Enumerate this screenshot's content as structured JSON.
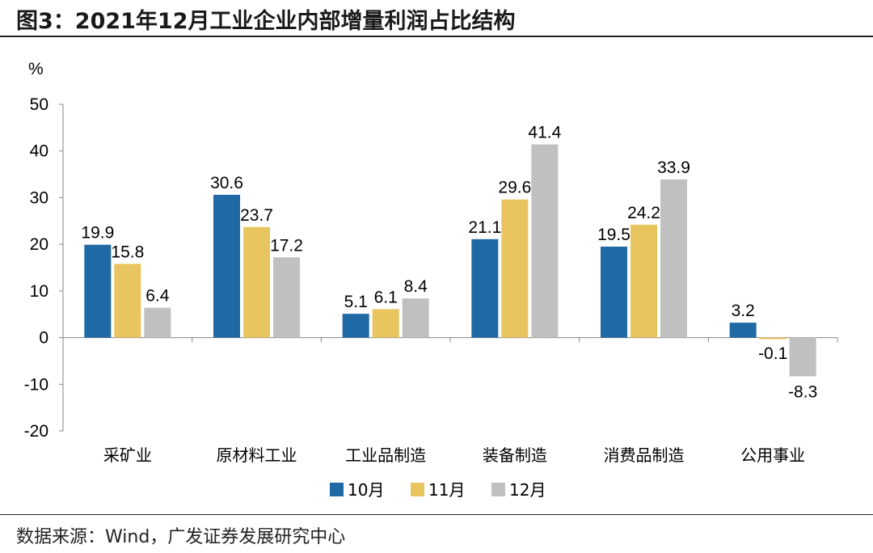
{
  "title": "图3：2021年12月工业企业内部增量利润占比结构",
  "source": "数据来源：Wind，广发证券发展研究中心",
  "chart_data": {
    "type": "bar",
    "title": "2021年12月工业企业内部增量利润占比结构",
    "ylabel": "%",
    "xlabel": "",
    "ylim": [
      -20,
      50
    ],
    "yticks": [
      -20,
      -10,
      0,
      10,
      20,
      30,
      40,
      50
    ],
    "categories": [
      "采矿业",
      "原材料工业",
      "工业品制造",
      "装备制造",
      "消费品制造",
      "公用事业"
    ],
    "series": [
      {
        "name": "10月",
        "color": "#1f6aa5",
        "values": [
          19.9,
          30.6,
          5.1,
          21.1,
          19.5,
          3.2
        ]
      },
      {
        "name": "11月",
        "color": "#e8c55e",
        "values": [
          15.8,
          23.7,
          6.1,
          29.6,
          24.2,
          -0.1
        ]
      },
      {
        "name": "12月",
        "color": "#c0c0c0",
        "values": [
          6.4,
          17.2,
          8.4,
          41.4,
          33.9,
          -8.3
        ]
      }
    ],
    "legend": "bottom",
    "grid": false
  }
}
